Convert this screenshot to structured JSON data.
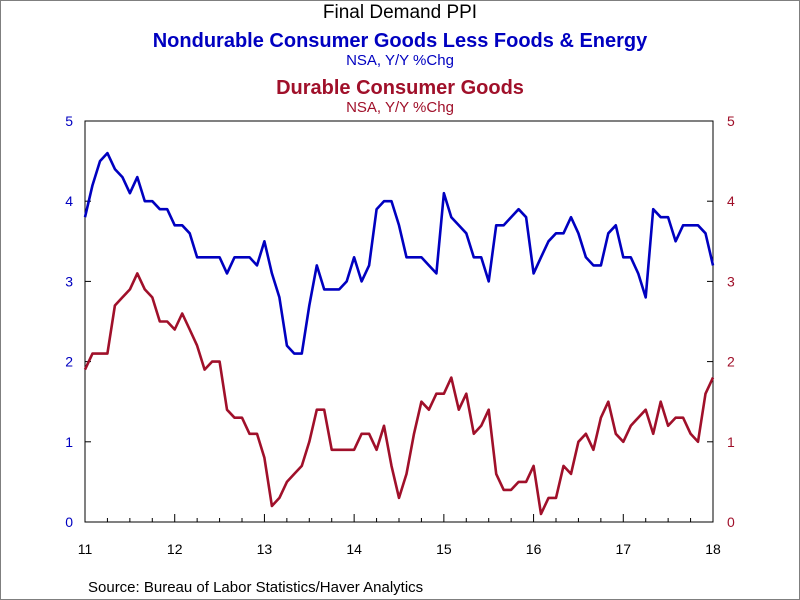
{
  "title": "Final Demand PPI",
  "series_titles": [
    {
      "name": "Nondurable Consumer Goods Less Foods & Energy",
      "units": "NSA, Y/Y %Chg"
    },
    {
      "name": "Durable Consumer Goods",
      "units": "NSA, Y/Y %Chg"
    }
  ],
  "source": "Source:  Bureau of Labor Statistics/Haver Analytics",
  "colors": {
    "nondurable": "#0000c0",
    "durable": "#a0102a",
    "axis": "#000000"
  },
  "chart_data": {
    "type": "line",
    "x_start": "2011-01",
    "x_end": "2018-03",
    "x_ticks": [
      "11",
      "12",
      "13",
      "14",
      "15",
      "16",
      "17",
      "18"
    ],
    "ylim": [
      0,
      5
    ],
    "y_ticks_left": [
      "0",
      "1",
      "2",
      "3",
      "4",
      "5"
    ],
    "y_ticks_right": [
      "0",
      "1",
      "2",
      "3",
      "4",
      "5"
    ],
    "grid": false,
    "series": [
      {
        "name": "Nondurable Consumer Goods Less Foods & Energy",
        "axis": "left",
        "values": [
          3.8,
          4.2,
          4.5,
          4.6,
          4.4,
          4.3,
          4.1,
          4.3,
          4.0,
          4.0,
          3.9,
          3.9,
          3.7,
          3.7,
          3.6,
          3.3,
          3.3,
          3.3,
          3.3,
          3.1,
          3.3,
          3.3,
          3.3,
          3.2,
          3.5,
          3.1,
          2.8,
          2.2,
          2.1,
          2.1,
          2.7,
          3.2,
          2.9,
          2.9,
          2.9,
          3.0,
          3.3,
          3.0,
          3.2,
          3.9,
          4.0,
          4.0,
          3.7,
          3.3,
          3.3,
          3.3,
          3.2,
          3.1,
          4.1,
          3.8,
          3.7,
          3.6,
          3.3,
          3.3,
          3.0,
          3.7,
          3.7,
          3.8,
          3.9,
          3.8,
          3.1,
          3.3,
          3.5,
          3.6,
          3.6,
          3.8,
          3.6,
          3.3,
          3.2,
          3.2,
          3.6,
          3.7,
          3.3,
          3.3,
          3.1,
          2.8,
          3.9,
          3.8,
          3.8,
          3.5,
          3.7,
          3.7,
          3.7,
          3.6,
          3.2
        ]
      },
      {
        "name": "Durable Consumer Goods",
        "axis": "right",
        "values": [
          1.9,
          2.1,
          2.1,
          2.1,
          2.7,
          2.8,
          2.9,
          3.1,
          2.9,
          2.8,
          2.5,
          2.5,
          2.4,
          2.6,
          2.4,
          2.2,
          1.9,
          2.0,
          2.0,
          1.4,
          1.3,
          1.3,
          1.1,
          1.1,
          0.8,
          0.2,
          0.3,
          0.5,
          0.6,
          0.7,
          1.0,
          1.4,
          1.4,
          0.9,
          0.9,
          0.9,
          0.9,
          1.1,
          1.1,
          0.9,
          1.2,
          0.7,
          0.3,
          0.6,
          1.1,
          1.5,
          1.4,
          1.6,
          1.6,
          1.8,
          1.4,
          1.6,
          1.1,
          1.2,
          1.4,
          0.6,
          0.4,
          0.4,
          0.5,
          0.5,
          0.7,
          0.1,
          0.3,
          0.3,
          0.7,
          0.6,
          1.0,
          1.1,
          0.9,
          1.3,
          1.5,
          1.1,
          1.0,
          1.2,
          1.3,
          1.4,
          1.1,
          1.5,
          1.2,
          1.3,
          1.3,
          1.1,
          1.0,
          1.6,
          1.8
        ]
      }
    ]
  }
}
